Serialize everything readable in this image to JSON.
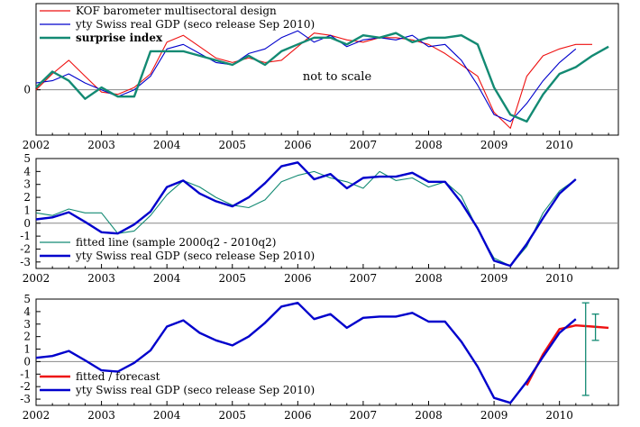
{
  "chart_data": [
    {
      "type": "line",
      "annotation": "not to scale",
      "xlim": [
        2002,
        2010.9
      ],
      "ylim": [
        -1.0,
        1.9
      ],
      "x_ticks": [
        "2002",
        "2003",
        "2004",
        "2005",
        "2006",
        "2007",
        "2008",
        "2009",
        "2010"
      ],
      "y_ticks": [
        "0"
      ],
      "legend": "top-left",
      "series": [
        {
          "name": "KOF barometer multisectoral design",
          "color": "#ee1111",
          "points": [
            [
              2002.0,
              0.0
            ],
            [
              2002.25,
              0.35
            ],
            [
              2002.5,
              0.65
            ],
            [
              2002.75,
              0.3
            ],
            [
              2003.0,
              -0.05
            ],
            [
              2003.25,
              -0.1
            ],
            [
              2003.5,
              0.05
            ],
            [
              2003.75,
              0.35
            ],
            [
              2004.0,
              1.05
            ],
            [
              2004.25,
              1.2
            ],
            [
              2004.5,
              0.95
            ],
            [
              2004.75,
              0.7
            ],
            [
              2005.0,
              0.6
            ],
            [
              2005.25,
              0.7
            ],
            [
              2005.5,
              0.6
            ],
            [
              2005.75,
              0.65
            ],
            [
              2006.0,
              0.95
            ],
            [
              2006.25,
              1.25
            ],
            [
              2006.5,
              1.2
            ],
            [
              2006.75,
              1.1
            ],
            [
              2007.0,
              1.05
            ],
            [
              2007.25,
              1.15
            ],
            [
              2007.5,
              1.15
            ],
            [
              2007.75,
              1.1
            ],
            [
              2008.0,
              1.0
            ],
            [
              2008.25,
              0.8
            ],
            [
              2008.5,
              0.55
            ],
            [
              2008.75,
              0.3
            ],
            [
              2009.0,
              -0.5
            ],
            [
              2009.25,
              -0.85
            ],
            [
              2009.5,
              0.3
            ],
            [
              2009.75,
              0.75
            ],
            [
              2010.0,
              0.9
            ],
            [
              2010.25,
              1.0
            ],
            [
              2010.5,
              1.0
            ]
          ]
        },
        {
          "name": "yty Swiss real GDP (seco release Sep 2010)",
          "color": "#0000cc",
          "points": [
            [
              2002.0,
              0.15
            ],
            [
              2002.25,
              0.2
            ],
            [
              2002.5,
              0.35
            ],
            [
              2002.75,
              0.15
            ],
            [
              2003.0,
              0.0
            ],
            [
              2003.25,
              -0.15
            ],
            [
              2003.5,
              0.0
            ],
            [
              2003.75,
              0.3
            ],
            [
              2004.0,
              0.9
            ],
            [
              2004.25,
              1.0
            ],
            [
              2004.5,
              0.8
            ],
            [
              2004.75,
              0.6
            ],
            [
              2005.0,
              0.55
            ],
            [
              2005.25,
              0.8
            ],
            [
              2005.5,
              0.9
            ],
            [
              2005.75,
              1.15
            ],
            [
              2006.0,
              1.3
            ],
            [
              2006.25,
              1.05
            ],
            [
              2006.5,
              1.2
            ],
            [
              2006.75,
              0.95
            ],
            [
              2007.0,
              1.1
            ],
            [
              2007.25,
              1.15
            ],
            [
              2007.5,
              1.1
            ],
            [
              2007.75,
              1.2
            ],
            [
              2008.0,
              0.95
            ],
            [
              2008.25,
              1.0
            ],
            [
              2008.5,
              0.65
            ],
            [
              2008.75,
              0.1
            ],
            [
              2009.0,
              -0.55
            ],
            [
              2009.25,
              -0.7
            ],
            [
              2009.5,
              -0.3
            ],
            [
              2009.75,
              0.2
            ],
            [
              2010.0,
              0.6
            ],
            [
              2010.25,
              0.9
            ]
          ]
        },
        {
          "name": "surprise index",
          "color": "#138a73",
          "points": [
            [
              2002.0,
              0.05
            ],
            [
              2002.25,
              0.4
            ],
            [
              2002.5,
              0.2
            ],
            [
              2002.75,
              -0.2
            ],
            [
              2003.0,
              0.05
            ],
            [
              2003.25,
              -0.15
            ],
            [
              2003.5,
              -0.15
            ],
            [
              2003.75,
              0.85
            ],
            [
              2004.0,
              0.85
            ],
            [
              2004.25,
              0.85
            ],
            [
              2004.5,
              0.75
            ],
            [
              2004.75,
              0.65
            ],
            [
              2005.0,
              0.55
            ],
            [
              2005.25,
              0.75
            ],
            [
              2005.5,
              0.55
            ],
            [
              2005.75,
              0.85
            ],
            [
              2006.0,
              1.0
            ],
            [
              2006.25,
              1.15
            ],
            [
              2006.5,
              1.15
            ],
            [
              2006.75,
              1.0
            ],
            [
              2007.0,
              1.2
            ],
            [
              2007.25,
              1.15
            ],
            [
              2007.5,
              1.25
            ],
            [
              2007.75,
              1.05
            ],
            [
              2008.0,
              1.15
            ],
            [
              2008.25,
              1.15
            ],
            [
              2008.5,
              1.2
            ],
            [
              2008.75,
              1.0
            ],
            [
              2009.0,
              0.05
            ],
            [
              2009.25,
              -0.55
            ],
            [
              2009.5,
              -0.7
            ],
            [
              2009.75,
              -0.1
            ],
            [
              2010.0,
              0.35
            ],
            [
              2010.25,
              0.5
            ],
            [
              2010.5,
              0.75
            ],
            [
              2010.75,
              0.95
            ]
          ]
        }
      ]
    },
    {
      "type": "line",
      "xlim": [
        2002,
        2010.9
      ],
      "ylim": [
        -3.5,
        5.0
      ],
      "x_ticks": [
        "2002",
        "2003",
        "2004",
        "2005",
        "2006",
        "2007",
        "2008",
        "2009",
        "2010"
      ],
      "y_ticks": [
        "-3",
        "-2",
        "-1",
        "0",
        "1",
        "2",
        "3",
        "4",
        "5"
      ],
      "legend": "bottom-left",
      "series": [
        {
          "name": "fitted line (sample 2000q2 - 2010q2)",
          "color": "#138a73",
          "points": [
            [
              2002.0,
              0.8
            ],
            [
              2002.25,
              0.6
            ],
            [
              2002.5,
              1.1
            ],
            [
              2002.75,
              0.8
            ],
            [
              2003.0,
              0.8
            ],
            [
              2003.25,
              -0.8
            ],
            [
              2003.5,
              -0.6
            ],
            [
              2003.75,
              0.6
            ],
            [
              2004.0,
              2.2
            ],
            [
              2004.25,
              3.3
            ],
            [
              2004.5,
              2.8
            ],
            [
              2004.75,
              2.0
            ],
            [
              2005.0,
              1.4
            ],
            [
              2005.25,
              1.2
            ],
            [
              2005.5,
              1.8
            ],
            [
              2005.75,
              3.2
            ],
            [
              2006.0,
              3.7
            ],
            [
              2006.25,
              4.0
            ],
            [
              2006.5,
              3.5
            ],
            [
              2006.75,
              3.2
            ],
            [
              2007.0,
              2.7
            ],
            [
              2007.25,
              4.0
            ],
            [
              2007.5,
              3.3
            ],
            [
              2007.75,
              3.5
            ],
            [
              2008.0,
              2.8
            ],
            [
              2008.25,
              3.2
            ],
            [
              2008.5,
              2.1
            ],
            [
              2008.75,
              -0.5
            ],
            [
              2009.0,
              -2.7
            ],
            [
              2009.25,
              -3.3
            ],
            [
              2009.5,
              -1.8
            ],
            [
              2009.75,
              0.8
            ],
            [
              2010.0,
              2.5
            ],
            [
              2010.25,
              3.4
            ]
          ]
        },
        {
          "name": "yty Swiss real GDP (seco release Sep 2010)",
          "color": "#0000cc",
          "points": [
            [
              2002.0,
              0.3
            ],
            [
              2002.25,
              0.45
            ],
            [
              2002.5,
              0.85
            ],
            [
              2002.75,
              0.1
            ],
            [
              2003.0,
              -0.7
            ],
            [
              2003.25,
              -0.8
            ],
            [
              2003.5,
              -0.1
            ],
            [
              2003.75,
              0.9
            ],
            [
              2004.0,
              2.8
            ],
            [
              2004.25,
              3.3
            ],
            [
              2004.5,
              2.3
            ],
            [
              2004.75,
              1.7
            ],
            [
              2005.0,
              1.3
            ],
            [
              2005.25,
              2.0
            ],
            [
              2005.5,
              3.1
            ],
            [
              2005.75,
              4.4
            ],
            [
              2006.0,
              4.7
            ],
            [
              2006.25,
              3.4
            ],
            [
              2006.5,
              3.8
            ],
            [
              2006.75,
              2.7
            ],
            [
              2007.0,
              3.5
            ],
            [
              2007.25,
              3.6
            ],
            [
              2007.5,
              3.6
            ],
            [
              2007.75,
              3.9
            ],
            [
              2008.0,
              3.2
            ],
            [
              2008.25,
              3.2
            ],
            [
              2008.5,
              1.6
            ],
            [
              2008.75,
              -0.4
            ],
            [
              2009.0,
              -2.9
            ],
            [
              2009.25,
              -3.3
            ],
            [
              2009.5,
              -1.6
            ],
            [
              2009.75,
              0.4
            ],
            [
              2010.0,
              2.3
            ],
            [
              2010.25,
              3.4
            ]
          ]
        }
      ]
    },
    {
      "type": "line",
      "xlim": [
        2002,
        2010.9
      ],
      "ylim": [
        -3.5,
        5.0
      ],
      "x_ticks": [
        "2002",
        "2003",
        "2004",
        "2005",
        "2006",
        "2007",
        "2008",
        "2009",
        "2010"
      ],
      "y_ticks": [
        "-3",
        "-2",
        "-1",
        "0",
        "1",
        "2",
        "3",
        "4",
        "5"
      ],
      "legend": "bottom-left",
      "series": [
        {
          "name": "fitted / forecast",
          "color": "#ee1111",
          "points": [
            [
              2009.5,
              -1.9
            ],
            [
              2009.75,
              0.6
            ],
            [
              2010.0,
              2.6
            ],
            [
              2010.25,
              2.9
            ],
            [
              2010.5,
              2.8
            ],
            [
              2010.75,
              2.7
            ]
          ]
        },
        {
          "name": "yty Swiss real GDP (seco release Sep 2010)",
          "color": "#0000cc",
          "points": [
            [
              2002.0,
              0.3
            ],
            [
              2002.25,
              0.45
            ],
            [
              2002.5,
              0.85
            ],
            [
              2002.75,
              0.1
            ],
            [
              2003.0,
              -0.7
            ],
            [
              2003.25,
              -0.8
            ],
            [
              2003.5,
              -0.1
            ],
            [
              2003.75,
              0.9
            ],
            [
              2004.0,
              2.8
            ],
            [
              2004.25,
              3.3
            ],
            [
              2004.5,
              2.3
            ],
            [
              2004.75,
              1.7
            ],
            [
              2005.0,
              1.3
            ],
            [
              2005.25,
              2.0
            ],
            [
              2005.5,
              3.1
            ],
            [
              2005.75,
              4.4
            ],
            [
              2006.0,
              4.7
            ],
            [
              2006.25,
              3.4
            ],
            [
              2006.5,
              3.8
            ],
            [
              2006.75,
              2.7
            ],
            [
              2007.0,
              3.5
            ],
            [
              2007.25,
              3.6
            ],
            [
              2007.5,
              3.6
            ],
            [
              2007.75,
              3.9
            ],
            [
              2008.0,
              3.2
            ],
            [
              2008.25,
              3.2
            ],
            [
              2008.5,
              1.6
            ],
            [
              2008.75,
              -0.4
            ],
            [
              2009.0,
              -2.9
            ],
            [
              2009.25,
              -3.3
            ],
            [
              2009.5,
              -1.6
            ],
            [
              2009.75,
              0.4
            ],
            [
              2010.0,
              2.3
            ],
            [
              2010.25,
              3.4
            ]
          ]
        }
      ],
      "error_bars": [
        {
          "x": 2010.4,
          "low": -2.7,
          "high": 4.7,
          "color": "#138a73"
        },
        {
          "x": 2010.55,
          "low": 1.7,
          "high": 3.8,
          "color": "#138a73"
        }
      ]
    }
  ]
}
